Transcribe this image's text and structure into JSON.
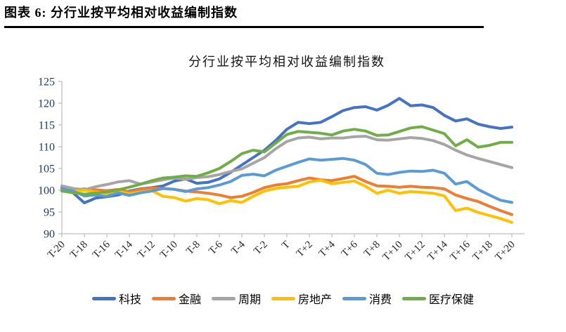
{
  "header": {
    "title": "图表 6: 分行业按平均相对收益编制指数"
  },
  "chart_data": {
    "type": "line",
    "title": "分行业按平均相对收益编制指数",
    "x_tick_labels": [
      "T-20",
      "T-18",
      "T-16",
      "T-14",
      "T-12",
      "T-10",
      "T-8",
      "T-6",
      "T-4",
      "T-2",
      "T",
      "T+2",
      "T+4",
      "T+6",
      "T+8",
      "T+10",
      "T+12",
      "T+14",
      "T+16",
      "T+18",
      "T+20"
    ],
    "x_points": 41,
    "ylim": [
      90,
      125
    ],
    "y_ticks": [
      90,
      95,
      100,
      105,
      110,
      115,
      120,
      125
    ],
    "grid": false,
    "legend_position": "bottom",
    "axis_color": "#BFBFBF",
    "ytick_text_color": "#203864",
    "xtick_text_color": "#262626",
    "series": [
      {
        "name": "科技",
        "color": "#4472C4",
        "values": [
          100.6,
          99.4,
          97.1,
          98.2,
          98.5,
          98.9,
          99.8,
          100.3,
          100.6,
          101.0,
          102.1,
          102.6,
          101.6,
          101.8,
          102.6,
          104.1,
          105.8,
          107.5,
          109.2,
          111.4,
          114.0,
          115.6,
          115.3,
          115.6,
          116.9,
          118.3,
          119.0,
          119.2,
          118.4,
          119.5,
          121.1,
          119.4,
          119.6,
          119.0,
          117.2,
          115.9,
          116.4,
          115.2,
          114.6,
          114.2,
          114.5
        ]
      },
      {
        "name": "金融",
        "color": "#ED7D31",
        "values": [
          100.1,
          100.0,
          100.3,
          100.1,
          99.9,
          100.2,
          99.6,
          100.2,
          100.5,
          100.4,
          100.2,
          99.8,
          99.6,
          99.3,
          98.9,
          98.3,
          98.6,
          99.5,
          100.6,
          101.2,
          101.5,
          102.2,
          102.8,
          102.4,
          102.2,
          102.7,
          103.2,
          102.0,
          101.0,
          100.9,
          100.7,
          100.9,
          100.7,
          100.6,
          100.3,
          98.9,
          98.1,
          97.4,
          96.3,
          95.3,
          94.4
        ]
      },
      {
        "name": "周期",
        "color": "#A5A5A5",
        "values": [
          101.0,
          100.4,
          100.1,
          100.8,
          101.3,
          101.9,
          102.2,
          101.4,
          101.9,
          102.4,
          102.8,
          102.5,
          102.9,
          103.1,
          103.6,
          104.3,
          104.9,
          106.2,
          107.5,
          109.5,
          111.2,
          112.0,
          112.2,
          111.8,
          112.0,
          112.0,
          112.3,
          112.4,
          111.6,
          111.5,
          111.8,
          112.1,
          111.9,
          111.4,
          110.5,
          109.2,
          108.1,
          107.3,
          106.6,
          105.9,
          105.2
        ]
      },
      {
        "name": "房地产",
        "color": "#FFC000",
        "values": [
          99.9,
          99.7,
          100.0,
          99.6,
          99.3,
          99.7,
          99.2,
          99.6,
          99.9,
          98.6,
          98.3,
          97.5,
          98.1,
          97.8,
          96.9,
          97.6,
          97.2,
          98.6,
          99.8,
          100.4,
          100.7,
          100.9,
          101.9,
          102.3,
          101.5,
          101.8,
          102.1,
          100.9,
          99.3,
          100.0,
          99.3,
          99.7,
          99.5,
          99.3,
          98.7,
          95.3,
          95.9,
          94.9,
          94.2,
          93.5,
          92.6
        ]
      },
      {
        "name": "消费",
        "color": "#5B9BD5",
        "values": [
          100.3,
          99.8,
          98.7,
          98.9,
          98.6,
          99.4,
          98.8,
          99.4,
          99.8,
          100.4,
          100.2,
          99.7,
          100.3,
          100.6,
          101.2,
          102.0,
          103.4,
          103.7,
          103.3,
          104.6,
          105.5,
          106.4,
          107.2,
          106.9,
          107.1,
          107.3,
          106.9,
          105.9,
          103.9,
          103.6,
          104.1,
          104.4,
          104.3,
          104.6,
          103.9,
          101.4,
          102.0,
          100.2,
          98.9,
          97.7,
          97.2
        ]
      },
      {
        "name": "医疗保健",
        "color": "#70AD47",
        "values": [
          99.8,
          99.4,
          99.1,
          99.3,
          99.6,
          100.1,
          100.7,
          101.4,
          102.2,
          102.8,
          103.0,
          103.3,
          103.2,
          104.0,
          105.0,
          106.6,
          108.4,
          109.2,
          108.8,
          110.8,
          112.8,
          113.5,
          113.3,
          113.1,
          112.7,
          113.6,
          114.0,
          113.6,
          112.6,
          112.7,
          113.5,
          114.3,
          114.6,
          113.8,
          113.0,
          110.2,
          111.6,
          109.9,
          110.3,
          111.0,
          111.0
        ]
      }
    ]
  }
}
